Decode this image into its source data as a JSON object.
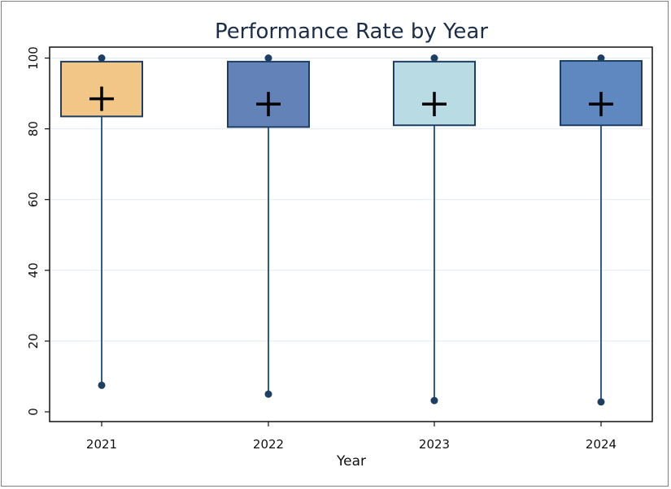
{
  "chart_data": {
    "type": "box",
    "title": "Performance Rate by Year",
    "xlabel": "Year",
    "ylabel": "",
    "ylim": [
      0,
      100
    ],
    "y_ticks": [
      0,
      20,
      40,
      60,
      80,
      100
    ],
    "grid": true,
    "categories": [
      "2021",
      "2022",
      "2023",
      "2024"
    ],
    "boxes": [
      {
        "category": "2021",
        "min": 7.5,
        "q1": 83.5,
        "q3": 99.0,
        "max": 100,
        "mean": 88.5,
        "color": "#f2c687"
      },
      {
        "category": "2022",
        "min": 5.0,
        "q1": 80.5,
        "q3": 99.0,
        "max": 100,
        "mean": 87.0,
        "color": "#6383b8"
      },
      {
        "category": "2023",
        "min": 3.2,
        "q1": 81.0,
        "q3": 99.0,
        "max": 100,
        "mean": 87.0,
        "color": "#b9dbe4"
      },
      {
        "category": "2024",
        "min": 2.8,
        "q1": 81.0,
        "q3": 99.2,
        "max": 100,
        "mean": 87.0,
        "color": "#5f87c0"
      }
    ],
    "colors": {
      "outline": "#1c3f63",
      "whisker": "#2f5d88",
      "point": "#1c3f63",
      "mean_marker": "#000000",
      "grid": "#e1ebf0"
    }
  }
}
